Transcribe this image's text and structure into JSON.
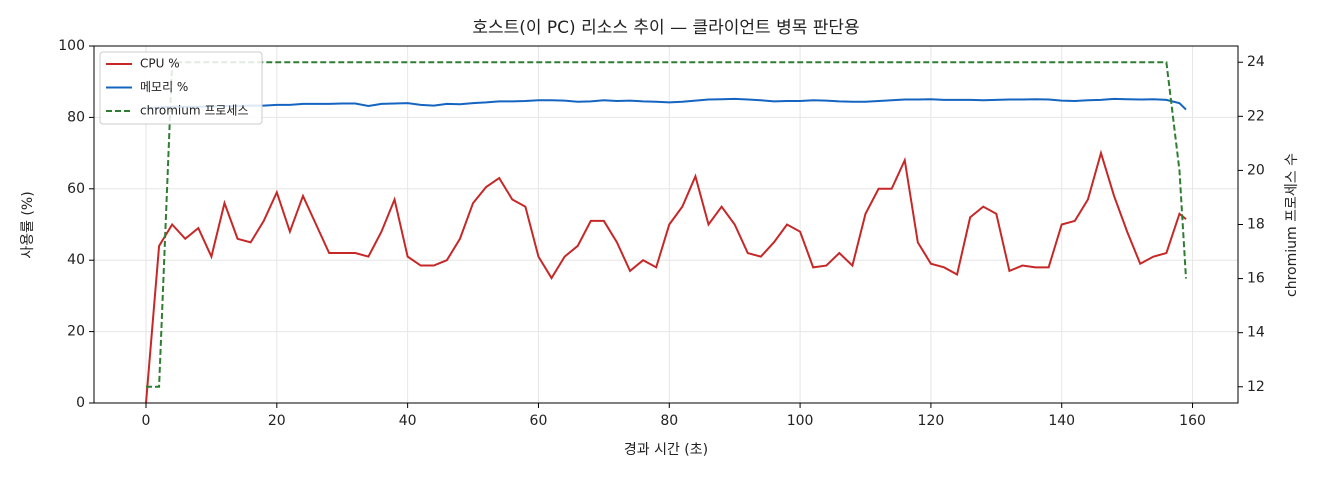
{
  "chart_data": {
    "type": "line",
    "title": "호스트(이 PC) 리소스 추이 — 클라이언트 병목 판단용",
    "xlabel": "경과 시간 (초)",
    "ylabel": "사용률 (%)",
    "y2label": "chromium 프로세스 수",
    "x": [
      0,
      2,
      4,
      6,
      8,
      10,
      12,
      14,
      16,
      18,
      20,
      22,
      24,
      26,
      28,
      30,
      32,
      34,
      36,
      38,
      40,
      42,
      44,
      46,
      48,
      50,
      52,
      54,
      56,
      58,
      60,
      62,
      64,
      66,
      68,
      70,
      72,
      74,
      76,
      78,
      80,
      82,
      84,
      86,
      88,
      90,
      92,
      94,
      96,
      98,
      100,
      102,
      104,
      106,
      108,
      110,
      112,
      114,
      116,
      118,
      120,
      122,
      124,
      126,
      128,
      130,
      132,
      134,
      136,
      138,
      140,
      142,
      144,
      146,
      148,
      150,
      152,
      154,
      156,
      158,
      159
    ],
    "series": [
      {
        "name": "CPU %",
        "color": "#c62828",
        "values": [
          0,
          44,
          50,
          46,
          49,
          41,
          56,
          46,
          45,
          51,
          59,
          48,
          58,
          50,
          42,
          42,
          42,
          41,
          48,
          57,
          41,
          38.5,
          38.5,
          40,
          46,
          56,
          60.5,
          63,
          57,
          55,
          41,
          35,
          41,
          44,
          51,
          51,
          45,
          37,
          40,
          38,
          50,
          55,
          63.5,
          50,
          55,
          50,
          42,
          41,
          45,
          50,
          48,
          38,
          38.5,
          42,
          38.5,
          53,
          60,
          60,
          68,
          45,
          39,
          38,
          36,
          52,
          55,
          53,
          37,
          38.5,
          38,
          38,
          50,
          51,
          57,
          70,
          58,
          48,
          39,
          41,
          42,
          53,
          51.5
        ]
      },
      {
        "name": "메모리 %",
        "color": "#1565c0",
        "values": [
          82.5,
          82.8,
          83,
          83,
          83,
          83.1,
          83.2,
          83.2,
          83.3,
          83.3,
          83.5,
          83.5,
          83.8,
          83.8,
          83.8,
          83.9,
          83.9,
          83.2,
          83.8,
          83.9,
          84,
          83.5,
          83.3,
          83.8,
          83.7,
          84,
          84.2,
          84.5,
          84.5,
          84.6,
          84.8,
          84.8,
          84.7,
          84.4,
          84.5,
          84.8,
          84.6,
          84.7,
          84.5,
          84.4,
          84.2,
          84.4,
          84.7,
          85,
          85.1,
          85.2,
          85,
          84.8,
          84.5,
          84.6,
          84.6,
          84.8,
          84.7,
          84.5,
          84.4,
          84.4,
          84.6,
          84.8,
          85,
          85,
          85.1,
          84.9,
          84.9,
          84.9,
          84.8,
          84.9,
          85,
          85,
          85.1,
          85,
          84.7,
          84.6,
          84.8,
          84.9,
          85.2,
          85.1,
          85,
          85.1,
          84.9,
          84,
          82.2
        ]
      },
      {
        "name": "chromium 프로세스",
        "color": "#2e7d32",
        "style": "dashed",
        "axis": "y2",
        "values": [
          12,
          12,
          24,
          24,
          24,
          24,
          24,
          24,
          24,
          24,
          24,
          24,
          24,
          24,
          24,
          24,
          24,
          24,
          24,
          24,
          24,
          24,
          24,
          24,
          24,
          24,
          24,
          24,
          24,
          24,
          24,
          24,
          24,
          24,
          24,
          24,
          24,
          24,
          24,
          24,
          24,
          24,
          24,
          24,
          24,
          24,
          24,
          24,
          24,
          24,
          24,
          24,
          24,
          24,
          24,
          24,
          24,
          24,
          24,
          24,
          24,
          24,
          24,
          24,
          24,
          24,
          24,
          24,
          24,
          24,
          24,
          24,
          24,
          24,
          24,
          24,
          24,
          24,
          24,
          20,
          16
        ]
      }
    ],
    "xlim": [
      -7.95,
      166.95
    ],
    "xticks": [
      0,
      20,
      40,
      60,
      80,
      100,
      120,
      140,
      160
    ],
    "ylim": [
      0,
      100
    ],
    "yticks": [
      0,
      20,
      40,
      60,
      80,
      100
    ],
    "y2lim": [
      11.4,
      24.6
    ],
    "y2ticks": [
      12,
      14,
      16,
      18,
      20,
      22,
      24
    ],
    "grid": true,
    "legend": "upper-left"
  }
}
